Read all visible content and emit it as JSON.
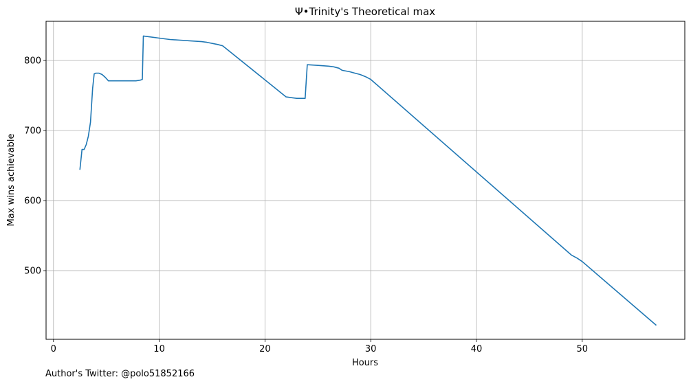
{
  "footnote": "Author's Twitter: @polo51852166",
  "chart_data": {
    "type": "line",
    "title": "Ψ•Trinity's Theoretical max",
    "xlabel": "Hours",
    "ylabel": "Max wins achievable",
    "xlim": [
      -0.7,
      59.7
    ],
    "ylim": [
      402,
      856
    ],
    "xticks": [
      0,
      10,
      20,
      30,
      40,
      50
    ],
    "yticks": [
      500,
      600,
      700,
      800
    ],
    "grid": true,
    "line_color": "#1f77b4",
    "series": [
      {
        "x": [
          2.5,
          2.7,
          2.9,
          3.1,
          3.3,
          3.5,
          3.7,
          3.85,
          4.0,
          4.3,
          4.6,
          4.9,
          5.2,
          5.5,
          5.8,
          6.2,
          6.6,
          7.0,
          7.4,
          7.8,
          8.2,
          8.4,
          8.5,
          9.0,
          10.0,
          11.0,
          12.0,
          13.0,
          14.0,
          14.5,
          15.5,
          16.0,
          22.0,
          22.5,
          23.0,
          23.8,
          24.0,
          25.0,
          26.0,
          26.5,
          27.0,
          27.3,
          28.0,
          28.5,
          29.0,
          29.5,
          30.0,
          49.0,
          49.5,
          50.0,
          57.0
        ],
        "y": [
          644,
          673,
          673,
          680,
          692,
          712,
          760,
          781,
          782,
          782,
          780,
          776,
          771,
          771,
          771,
          771,
          771,
          771,
          771,
          771,
          772,
          773,
          835,
          834,
          832,
          830,
          829,
          828,
          827,
          826,
          823,
          821,
          748,
          747,
          746,
          746,
          794,
          793,
          792,
          791,
          789,
          786,
          784,
          782,
          780,
          777,
          773,
          522,
          518,
          513,
          422
        ]
      }
    ]
  }
}
